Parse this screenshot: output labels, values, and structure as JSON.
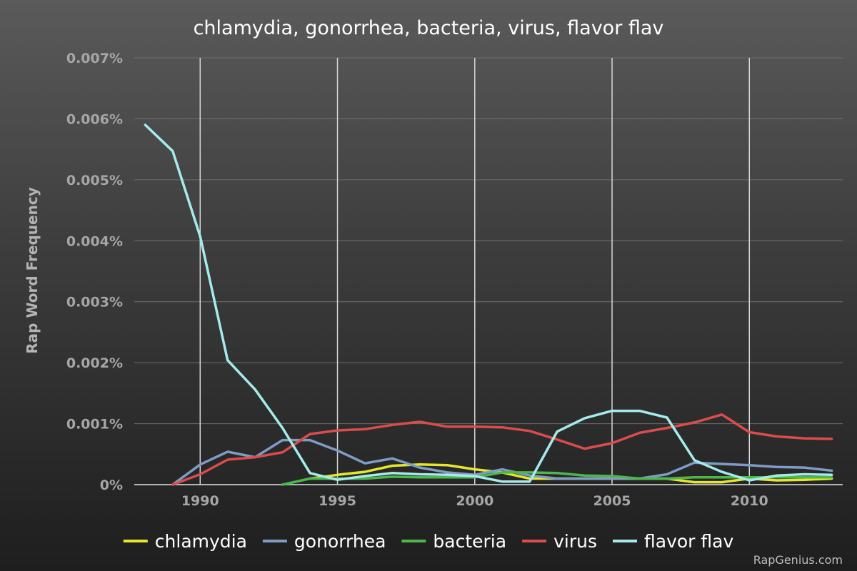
{
  "chart_data": {
    "type": "line",
    "title": "chlamydia, gonorrhea, bacteria, virus, flavor flav",
    "xlabel": "",
    "ylabel": "Rap Word Frequency",
    "x": [
      1988,
      1989,
      1990,
      1991,
      1992,
      1993,
      1994,
      1995,
      1996,
      1997,
      1998,
      1999,
      2000,
      2001,
      2002,
      2003,
      2004,
      2005,
      2006,
      2007,
      2008,
      2009,
      2010,
      2011,
      2012,
      2013
    ],
    "xlim": [
      1987.6,
      2013.4
    ],
    "ylim": [
      0,
      0.007
    ],
    "x_ticks": [
      1990,
      1995,
      2000,
      2005,
      2010
    ],
    "x_tick_labels": [
      "1990",
      "1995",
      "2000",
      "2005",
      "2010"
    ],
    "y_ticks": [
      0,
      0.001,
      0.002,
      0.003,
      0.004,
      0.005,
      0.006,
      0.007
    ],
    "y_tick_labels": [
      "0%",
      "0.001%",
      "0.002%",
      "0.003%",
      "0.004%",
      "0.005%",
      "0.006%",
      "0.007%"
    ],
    "grid": {
      "horizontal": true,
      "vertical": true
    },
    "legend_position": "bottom",
    "series": [
      {
        "name": "chlamydia",
        "color": "#e6e62e",
        "values": [
          null,
          null,
          null,
          null,
          null,
          null,
          0.0001,
          0.00016,
          0.00021,
          0.00031,
          0.00033,
          0.00032,
          0.00025,
          0.0002,
          0.0001,
          0.0001,
          0.0001,
          0.0001,
          0.0001,
          0.0001,
          4e-05,
          4e-05,
          0.0001,
          7e-05,
          8e-05,
          0.0001
        ]
      },
      {
        "name": "gonorrhea",
        "color": "#7f9cc6",
        "values": [
          null,
          0.0,
          0.00033,
          0.00054,
          0.00045,
          0.00073,
          0.00073,
          0.00056,
          0.00035,
          0.00043,
          0.00028,
          0.0002,
          0.00016,
          0.00025,
          0.00015,
          0.0001,
          0.0001,
          0.0001,
          0.0001,
          0.00017,
          0.00036,
          0.00034,
          0.00032,
          0.00029,
          0.00028,
          0.00023
        ]
      },
      {
        "name": "bacteria",
        "color": "#4cb84c",
        "values": [
          null,
          null,
          null,
          null,
          null,
          0.0,
          0.0001,
          0.0001,
          0.0001,
          0.00013,
          0.00012,
          0.00012,
          0.00012,
          0.0002,
          0.0002,
          0.00019,
          0.00015,
          0.00014,
          0.0001,
          0.0001,
          0.00012,
          0.00012,
          0.00012,
          0.00012,
          0.00012,
          0.00012
        ]
      },
      {
        "name": "virus",
        "color": "#db4c4c",
        "values": [
          null,
          0.0,
          0.00017,
          0.00041,
          0.00045,
          0.00053,
          0.00083,
          0.00089,
          0.00091,
          0.00098,
          0.00103,
          0.00095,
          0.00095,
          0.00094,
          0.00088,
          0.00074,
          0.00059,
          0.00068,
          0.00085,
          0.00093,
          0.00102,
          0.00115,
          0.00086,
          0.00079,
          0.00076,
          0.00075
        ]
      },
      {
        "name": "flavor flav",
        "color": "#a6ebeb",
        "values": [
          0.0059,
          0.00547,
          0.00407,
          0.00204,
          0.00156,
          0.00093,
          0.00019,
          8e-05,
          0.00014,
          0.00019,
          0.00017,
          0.00016,
          0.00014,
          5e-05,
          5e-05,
          0.00087,
          0.00109,
          0.00121,
          0.00121,
          0.0011,
          0.0004,
          0.00021,
          7e-05,
          0.00015,
          0.00017,
          0.00016
        ]
      }
    ]
  },
  "footer": {
    "watermark": "RapGenius.com"
  }
}
